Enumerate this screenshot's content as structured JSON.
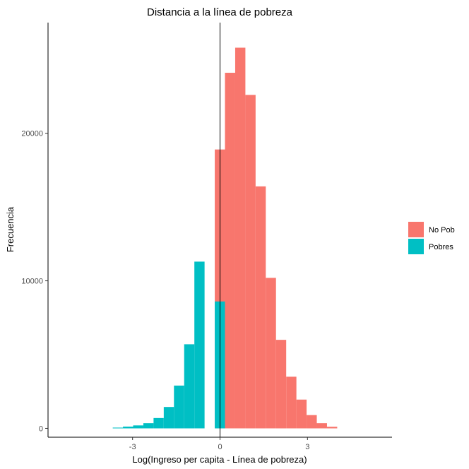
{
  "chart_data": {
    "type": "bar",
    "title": "Distancia a la línea de pobreza",
    "xlabel": "Log(Ingreso per capita - Línea de pobreza)",
    "ylabel": "Frecuencia",
    "xlim": [
      -5.9,
      5.9
    ],
    "ylim": [
      -600,
      27500
    ],
    "x_ticks": [
      -3,
      0,
      3
    ],
    "x_tick_labels": [
      "-3",
      "0",
      "3"
    ],
    "y_ticks": [
      0,
      10000,
      20000
    ],
    "y_tick_labels": [
      "0",
      "10000",
      "20000"
    ],
    "bin_width": 0.35,
    "vline_x": 0,
    "grid": false,
    "legend_position": "right",
    "series": [
      {
        "name": "No Pob",
        "color": "#F8766D",
        "bins": [
          {
            "x0": -0.18,
            "value": 18900
          },
          {
            "x0": 0.17,
            "value": 24100
          },
          {
            "x0": 0.52,
            "value": 25800
          },
          {
            "x0": 0.87,
            "value": 22600
          },
          {
            "x0": 1.22,
            "value": 16400
          },
          {
            "x0": 1.57,
            "value": 10200
          },
          {
            "x0": 1.92,
            "value": 6000
          },
          {
            "x0": 2.27,
            "value": 3500
          },
          {
            "x0": 2.62,
            "value": 1950
          },
          {
            "x0": 2.97,
            "value": 900
          },
          {
            "x0": 3.32,
            "value": 350
          },
          {
            "x0": 3.67,
            "value": 110
          }
        ]
      },
      {
        "name": "Pobres",
        "color": "#00BFC4",
        "bins": [
          {
            "x0": -3.68,
            "value": 50
          },
          {
            "x0": -3.33,
            "value": 120
          },
          {
            "x0": -2.98,
            "value": 200
          },
          {
            "x0": -2.63,
            "value": 350
          },
          {
            "x0": -2.28,
            "value": 700
          },
          {
            "x0": -1.93,
            "value": 1450
          },
          {
            "x0": -1.58,
            "value": 2900
          },
          {
            "x0": -1.23,
            "value": 5700
          },
          {
            "x0": -0.88,
            "value": 11300
          },
          {
            "x0": -0.18,
            "value": 8600
          }
        ]
      }
    ]
  }
}
